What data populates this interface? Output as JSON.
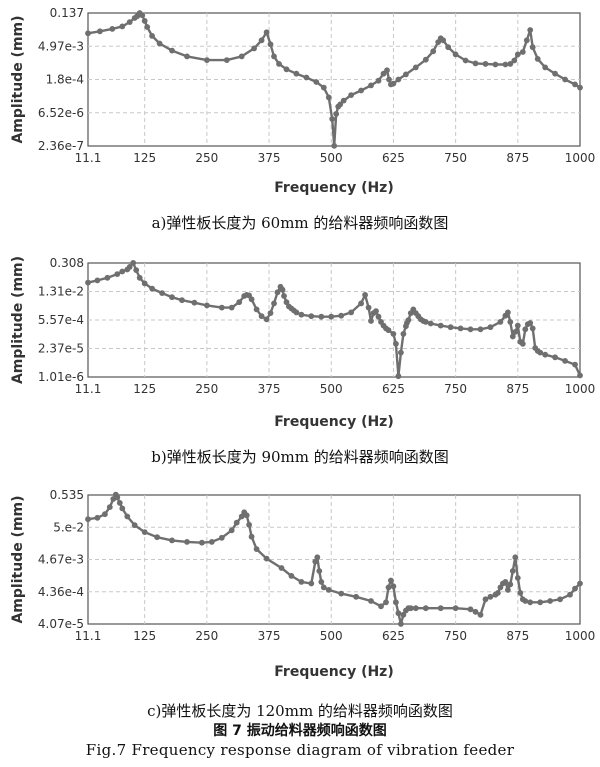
{
  "figure": {
    "caption_cn": "图 7 振动给料器频响函数图",
    "caption_en": "Fig.7  Frequency response diagram of vibration feeder"
  },
  "chart_data": [
    {
      "type": "line",
      "caption": "a)弹性板长度为 60mm 的给料器频响函数图",
      "xlabel": "Frequency (Hz)",
      "ylabel": "Amplitude (mm)",
      "xlim": [
        11.1,
        1000
      ],
      "x_ticks": [
        "11.1",
        "125",
        "250",
        "375",
        "500",
        "625",
        "750",
        "875",
        "1000"
      ],
      "y_ticks": [
        "0.137",
        "4.97e-3",
        "1.8e-4",
        "6.52e-6",
        "2.36e-7"
      ],
      "y_scale": "log",
      "grid": true,
      "x": [
        11.1,
        35,
        60,
        80,
        95,
        105,
        110,
        115,
        120,
        125,
        130,
        140,
        155,
        180,
        210,
        250,
        290,
        320,
        345,
        360,
        370,
        378,
        385,
        395,
        410,
        430,
        450,
        470,
        485,
        495,
        502,
        506,
        510,
        514,
        518,
        525,
        540,
        560,
        580,
        595,
        605,
        612,
        616,
        620,
        625,
        635,
        650,
        670,
        690,
        705,
        715,
        720,
        725,
        735,
        750,
        770,
        790,
        810,
        830,
        850,
        860,
        868,
        875,
        885,
        893,
        900,
        905,
        915,
        930,
        950,
        970,
        990,
        1000
      ],
      "y": [
        0.018,
        0.022,
        0.028,
        0.036,
        0.055,
        0.083,
        0.1,
        0.137,
        0.11,
        0.062,
        0.034,
        0.014,
        0.0065,
        0.0032,
        0.0018,
        0.00125,
        0.00125,
        0.0018,
        0.004,
        0.009,
        0.02,
        0.006,
        0.0018,
        0.00085,
        0.0005,
        0.00032,
        0.00022,
        0.00014,
        8e-05,
        3e-05,
        3.5e-06,
        2.4e-07,
        5.8e-06,
        1.2e-05,
        1.5e-05,
        2.2e-05,
        3.8e-05,
        6e-05,
        0.0001,
        0.00016,
        0.00032,
        0.00045,
        0.00018,
        0.00011,
        0.00012,
        0.00018,
        0.0003,
        0.0006,
        0.0013,
        0.003,
        0.0075,
        0.011,
        0.009,
        0.0045,
        0.0022,
        0.0012,
        0.0009,
        0.00085,
        0.0008,
        0.0008,
        0.00085,
        0.0012,
        0.0022,
        0.0028,
        0.009,
        0.025,
        0.0045,
        0.0014,
        0.0006,
        0.00032,
        0.00018,
        0.00011,
        8e-05
      ]
    },
    {
      "type": "line",
      "caption": "b)弹性板长度为 90mm 的给料器频响函数图",
      "xlabel": "Frequency (Hz)",
      "ylabel": "Amplitude (mm)",
      "xlim": [
        11.1,
        1000
      ],
      "x_ticks": [
        "11.1",
        "125",
        "250",
        "375",
        "500",
        "625",
        "750",
        "875",
        "1000"
      ],
      "y_ticks": [
        "0.308",
        "1.31e-2",
        "5.57e-4",
        "2.37e-5",
        "1.01e-6"
      ],
      "y_scale": "log",
      "grid": true,
      "x": [
        11.1,
        30,
        50,
        70,
        80,
        90,
        95,
        102,
        108,
        115,
        125,
        140,
        160,
        180,
        200,
        225,
        250,
        280,
        300,
        315,
        325,
        330,
        335,
        340,
        350,
        360,
        370,
        378,
        385,
        392,
        398,
        402,
        405,
        410,
        415,
        420,
        425,
        430,
        440,
        460,
        480,
        500,
        520,
        540,
        560,
        568,
        575,
        580,
        585,
        590,
        595,
        600,
        605,
        610,
        615,
        625,
        630,
        635,
        640,
        645,
        650,
        652,
        655,
        660,
        665,
        670,
        675,
        680,
        685,
        690,
        700,
        720,
        740,
        760,
        780,
        800,
        820,
        840,
        850,
        855,
        860,
        865,
        870,
        875,
        880,
        885,
        890,
        895,
        900,
        905,
        910,
        915,
        920,
        930,
        950,
        970,
        990,
        1000
      ],
      "y": [
        0.035,
        0.045,
        0.06,
        0.09,
        0.12,
        0.15,
        0.2,
        0.31,
        0.14,
        0.06,
        0.032,
        0.018,
        0.011,
        0.007,
        0.005,
        0.0038,
        0.0028,
        0.0022,
        0.0022,
        0.004,
        0.008,
        0.009,
        0.0085,
        0.0055,
        0.0018,
        0.00085,
        0.0006,
        0.0012,
        0.0035,
        0.012,
        0.022,
        0.016,
        0.008,
        0.004,
        0.0025,
        0.002,
        0.0016,
        0.0013,
        0.001,
        0.00085,
        0.0008,
        0.0008,
        0.0009,
        0.0013,
        0.0035,
        0.009,
        0.0022,
        0.0005,
        0.0012,
        0.0015,
        0.0008,
        0.00045,
        0.0003,
        0.00022,
        0.00018,
        0.00012,
        4e-05,
        1.1e-06,
        1.5e-05,
        0.00012,
        0.00028,
        0.0004,
        0.00055,
        0.0012,
        0.0018,
        0.0012,
        0.00085,
        0.0006,
        0.0005,
        0.00045,
        0.00038,
        0.0003,
        0.00025,
        0.00022,
        0.0002,
        0.0002,
        0.00025,
        0.00045,
        0.0009,
        0.0013,
        0.00045,
        9e-05,
        0.00015,
        0.0003,
        5e-05,
        4e-05,
        0.0002,
        0.00035,
        0.0004,
        0.00022,
        2.5e-05,
        1.8e-05,
        1.5e-05,
        1.2e-05,
        9e-06,
        6e-06,
        4e-06,
        1.2e-06
      ]
    },
    {
      "type": "line",
      "caption": "c)弹性板长度为 120mm 的给料器频响函数图",
      "xlabel": "Frequency (Hz)",
      "ylabel": "Amplitude (mm)",
      "xlim": [
        11.1,
        1000
      ],
      "x_ticks": [
        "11.1",
        "125",
        "250",
        "375",
        "500",
        "625",
        "750",
        "875",
        "1000"
      ],
      "y_ticks": [
        "0.535",
        "5.e-2",
        "4.67e-3",
        "4.36e-4",
        "4.07e-5"
      ],
      "y_scale": "log",
      "grid": true,
      "x": [
        11.1,
        30,
        45,
        55,
        62,
        67,
        70,
        75,
        80,
        90,
        105,
        125,
        150,
        180,
        210,
        240,
        260,
        280,
        300,
        310,
        320,
        325,
        330,
        335,
        340,
        350,
        370,
        400,
        420,
        440,
        460,
        468,
        472,
        476,
        480,
        485,
        495,
        520,
        550,
        580,
        600,
        610,
        615,
        620,
        625,
        630,
        635,
        640,
        645,
        650,
        655,
        660,
        670,
        690,
        720,
        750,
        780,
        790,
        800,
        810,
        820,
        830,
        835,
        840,
        845,
        850,
        855,
        860,
        865,
        870,
        875,
        880,
        885,
        890,
        900,
        920,
        940,
        960,
        980,
        990,
        1000
      ],
      "y": [
        0.09,
        0.1,
        0.13,
        0.22,
        0.4,
        0.55,
        0.45,
        0.3,
        0.2,
        0.11,
        0.058,
        0.035,
        0.024,
        0.019,
        0.017,
        0.016,
        0.017,
        0.023,
        0.04,
        0.07,
        0.11,
        0.15,
        0.12,
        0.06,
        0.025,
        0.01,
        0.005,
        0.0025,
        0.0014,
        0.0009,
        0.0008,
        0.004,
        0.0055,
        0.002,
        0.0009,
        0.0006,
        0.0005,
        0.00038,
        0.0003,
        0.00022,
        0.00015,
        0.0002,
        0.0006,
        0.001,
        0.00065,
        0.0002,
        9e-05,
        4e-05,
        8e-05,
        0.00011,
        0.00013,
        0.00013,
        0.00013,
        0.00013,
        0.00013,
        0.00013,
        0.00012,
        0.0001,
        8e-05,
        0.00025,
        0.0003,
        0.00035,
        0.0004,
        0.0006,
        0.0008,
        0.0009,
        0.0005,
        0.00075,
        0.002,
        0.0055,
        0.0012,
        0.0004,
        0.00025,
        0.00022,
        0.0002,
        0.0002,
        0.00022,
        0.00025,
        0.00035,
        0.00055,
        0.0008
      ]
    }
  ]
}
